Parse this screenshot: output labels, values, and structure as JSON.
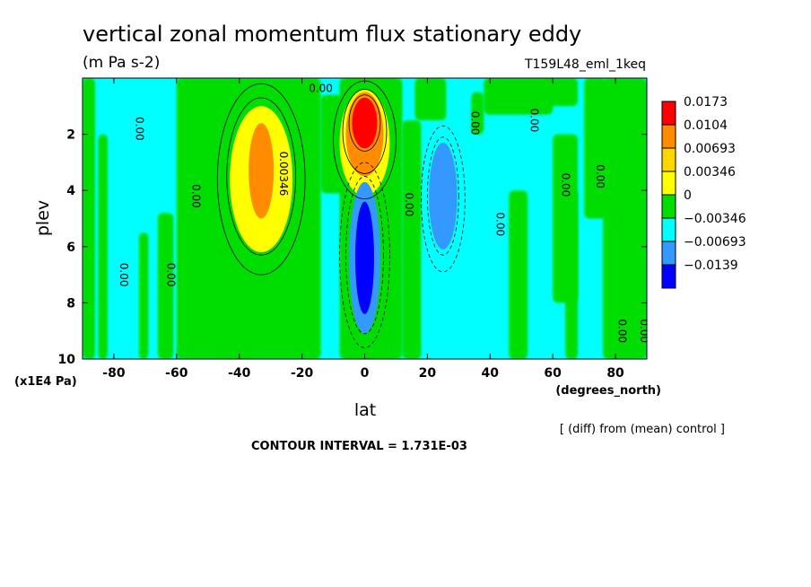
{
  "chart_data": {
    "type": "heatmap",
    "title": "vertical zonal momentum flux stationary eddy",
    "units": "(m Pa s-2)",
    "run_label": "T159L48_eml_1keq",
    "xlabel": "lat",
    "x_units": "(degrees_north)",
    "ylabel": "plev",
    "y_units": "(x1E4 Pa)",
    "xlim": [
      -90,
      90
    ],
    "ylim": [
      10,
      0
    ],
    "x_ticks": [
      -80,
      -60,
      -40,
      -20,
      0,
      20,
      40,
      60,
      80
    ],
    "y_ticks": [
      2,
      4,
      6,
      8,
      10
    ],
    "footer_note": "[ (diff) from (mean) control ]",
    "contour_interval_label": "CONTOUR INTERVAL = 1.731E-03",
    "colorbar": {
      "levels": [
        "0.0173",
        "0.0104",
        "0.00693",
        "0.00346",
        "0",
        "−0.00346",
        "−0.00693",
        "−0.0139"
      ],
      "colors": [
        "#ff0000",
        "#ff8c00",
        "#ffd700",
        "#ffff00",
        "#00dd00",
        "#00ffff",
        "#3399ff",
        "#0000ff"
      ]
    },
    "colormap": {
      "strong_positive": "#ff0000",
      "positive_high": "#ff8c00",
      "positive_mid": "#ffd700",
      "positive_low": "#ffff00",
      "near_zero_positive": "#00dd00",
      "near_zero_negative": "#00ffff",
      "negative_mid": "#3399ff",
      "strong_negative": "#0000ff"
    },
    "field_features": [
      {
        "kind": "positive_max",
        "lat": -33,
        "plev": 3.2,
        "value": 0.0104
      },
      {
        "kind": "positive_max",
        "lat": 0,
        "plev": 1.8,
        "value": 0.0173
      },
      {
        "kind": "negative_min",
        "lat": 0,
        "plev": 6.5,
        "value": -0.0139
      },
      {
        "kind": "negative_min",
        "lat": 26,
        "plev": 4.0,
        "value": -0.00693
      }
    ],
    "contour_labels": [
      {
        "text": "0.00",
        "lat": -73,
        "plev": 1.8,
        "angle": 90
      },
      {
        "text": "0.00",
        "lat": -55,
        "plev": 4.2,
        "angle": 90
      },
      {
        "text": "0.00",
        "lat": -78,
        "plev": 7.0,
        "angle": 90
      },
      {
        "text": "0.00",
        "lat": -63,
        "plev": 7.0,
        "angle": 90
      },
      {
        "text": "0.00346",
        "lat": -27,
        "plev": 3.4,
        "angle": 90
      },
      {
        "text": "0.00",
        "lat": -14,
        "plev": 0.5,
        "angle": 0
      },
      {
        "text": "0.00",
        "lat": 13,
        "plev": 4.5,
        "angle": 90
      },
      {
        "text": "0.00",
        "lat": 34,
        "plev": 1.6,
        "angle": 90
      },
      {
        "text": "0.00",
        "lat": 42,
        "plev": 5.2,
        "angle": 90
      },
      {
        "text": "0.00",
        "lat": 53,
        "plev": 1.5,
        "angle": 90
      },
      {
        "text": "0.00",
        "lat": 63,
        "plev": 3.8,
        "angle": 90
      },
      {
        "text": "0.00",
        "lat": 74,
        "plev": 3.5,
        "angle": 90
      },
      {
        "text": "0.00",
        "lat": 81,
        "plev": 9.0,
        "angle": 90
      },
      {
        "text": "0.00",
        "lat": 88,
        "plev": 9.0,
        "angle": 90
      }
    ]
  }
}
